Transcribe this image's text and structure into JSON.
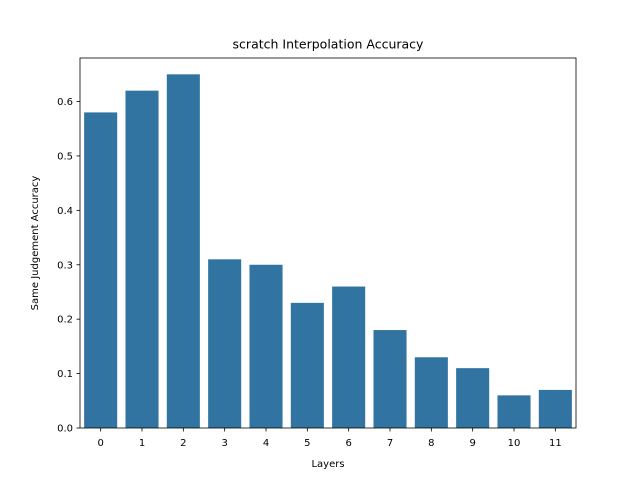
{
  "chart_data": {
    "type": "bar",
    "title": "scratch Interpolation Accuracy",
    "xlabel": "Layers",
    "ylabel": "Same Judgement Accuracy",
    "categories": [
      "0",
      "1",
      "2",
      "3",
      "4",
      "5",
      "6",
      "7",
      "8",
      "9",
      "10",
      "11"
    ],
    "values": [
      0.58,
      0.62,
      0.65,
      0.31,
      0.3,
      0.23,
      0.26,
      0.18,
      0.13,
      0.11,
      0.06,
      0.07
    ],
    "ylim": [
      0,
      0.68
    ],
    "yticks": [
      "0.0",
      "0.1",
      "0.2",
      "0.3",
      "0.4",
      "0.5",
      "0.6"
    ],
    "bar_color": "#3274a1",
    "grid": false,
    "legend": "none"
  }
}
